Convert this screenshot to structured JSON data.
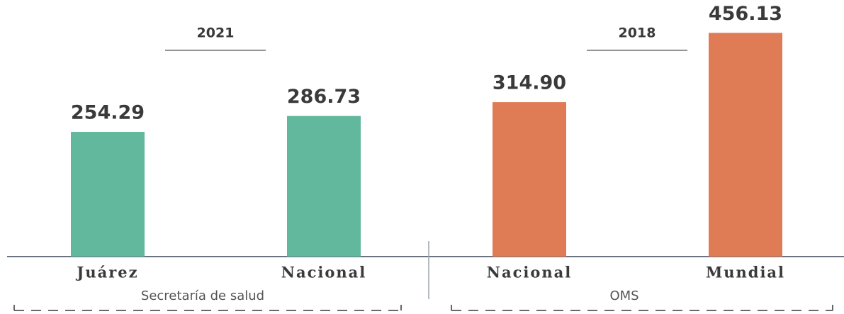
{
  "chart_data": {
    "type": "bar",
    "ylim": [
      0,
      500
    ],
    "groups": [
      {
        "year": "2021",
        "name": "Secretaría de salud",
        "color": "#62b89c",
        "categories": [
          "Juárez",
          "Nacional"
        ],
        "values": [
          254.29,
          286.73
        ]
      },
      {
        "year": "2018",
        "name": "OMS",
        "color": "#e07c55",
        "categories": [
          "Nacional",
          "Mundial"
        ],
        "values": [
          314.9,
          456.13
        ],
        "value_labels": [
          "314.90",
          "456.13"
        ]
      }
    ]
  }
}
